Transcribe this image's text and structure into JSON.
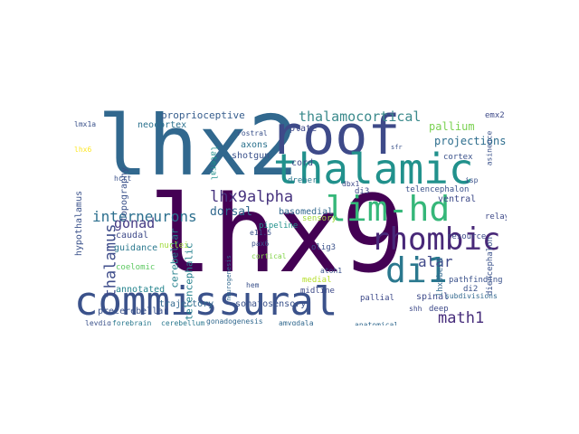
{
  "chart_data": {
    "type": "wordcloud",
    "words": [
      {
        "text": "lhx9",
        "color": "#440154"
      },
      {
        "text": "lhx2",
        "color": "#31688e"
      },
      {
        "text": "commissural",
        "color": "#3b528b"
      },
      {
        "text": "roof",
        "color": "#3e4a89"
      },
      {
        "text": "thalamic",
        "color": "#21918c"
      },
      {
        "text": "lim-hd",
        "color": "#35b779"
      },
      {
        "text": "rhombic",
        "color": "#482878"
      },
      {
        "text": "di1",
        "color": "#2a788e"
      },
      {
        "text": "lhx9alpha",
        "color": "#46327e"
      },
      {
        "text": "thalamocortical",
        "color": "#3b8a8c"
      },
      {
        "text": "interneurons",
        "color": "#2c6f8e"
      },
      {
        "text": "thalamus",
        "color": "#3e4c8a"
      },
      {
        "text": "gonad",
        "color": "#443a83"
      },
      {
        "text": "math1",
        "color": "#472d7b"
      },
      {
        "text": "alar",
        "color": "#3f4889"
      },
      {
        "text": "proprioceptive",
        "color": "#365d8d"
      },
      {
        "text": "pallium",
        "color": "#7ad151"
      },
      {
        "text": "projections",
        "color": "#2e6e8e"
      },
      {
        "text": "dorsal",
        "color": "#31688e"
      },
      {
        "text": "cerebellar",
        "color": "#26828e"
      },
      {
        "text": "telencephalic",
        "color": "#26828e"
      },
      {
        "text": "hypothalamus",
        "color": "#3b528b"
      },
      {
        "text": "topography",
        "color": "#3b528b"
      },
      {
        "text": "neocortex",
        "color": "#2c728e"
      },
      {
        "text": "axons",
        "color": "#2c728e"
      },
      {
        "text": "shotgun",
        "color": "#3b528b"
      },
      {
        "text": "plate",
        "color": "#3e4a89"
      },
      {
        "text": "cord",
        "color": "#3e4a89"
      },
      {
        "text": "lateral",
        "color": "#21918c"
      },
      {
        "text": "caudal",
        "color": "#3e4a89"
      },
      {
        "text": "guidance",
        "color": "#2a788e"
      },
      {
        "text": "annotated",
        "color": "#25848e"
      },
      {
        "text": "coelomic",
        "color": "#5ec962"
      },
      {
        "text": "precerebellar",
        "color": "#3b528b"
      },
      {
        "text": "trajectory",
        "color": "#31688e"
      },
      {
        "text": "somatosensory",
        "color": "#3b528b"
      },
      {
        "text": "basomedial",
        "color": "#31688e"
      },
      {
        "text": "midline",
        "color": "#3e4a89"
      },
      {
        "text": "pallial",
        "color": "#3e4a89"
      },
      {
        "text": "spinal",
        "color": "#3e4a89"
      },
      {
        "text": "deep",
        "color": "#3e4a89"
      },
      {
        "text": "ventral",
        "color": "#3e4a89"
      },
      {
        "text": "resource",
        "color": "#3e4a89"
      },
      {
        "text": "relay",
        "color": "#3e4a89"
      },
      {
        "text": "telencephalon",
        "color": "#3b528b"
      },
      {
        "text": "diencephalon",
        "color": "#3b528b"
      },
      {
        "text": "pathfinding",
        "color": "#3b528b"
      },
      {
        "text": "subdivisions",
        "color": "#31688e"
      },
      {
        "text": "anatomical",
        "color": "#31688e"
      },
      {
        "text": "forebrain",
        "color": "#2a788e"
      },
      {
        "text": "cerebellum",
        "color": "#2a788e"
      },
      {
        "text": "gonadogenesis",
        "color": "#31688e"
      },
      {
        "text": "amygdala",
        "color": "#31688e"
      },
      {
        "text": "unconscious",
        "color": "#3b528b"
      },
      {
        "text": "leydig",
        "color": "#3b528b"
      },
      {
        "text": "emx2",
        "color": "#3e4a89"
      },
      {
        "text": "di3",
        "color": "#3e4a89"
      },
      {
        "text": "dbx1",
        "color": "#3e4a89"
      },
      {
        "text": "sensory",
        "color": "#a0da39"
      },
      {
        "text": "cortex",
        "color": "#3b528b"
      },
      {
        "text": "medial",
        "color": "#b5de2b"
      },
      {
        "text": "olig3",
        "color": "#3b528b"
      },
      {
        "text": "atoh1",
        "color": "#3b528b"
      },
      {
        "text": "pax6",
        "color": "#3b528b"
      },
      {
        "text": "e11.5",
        "color": "#3b528b"
      },
      {
        "text": "hcrt",
        "color": "#3b528b"
      },
      {
        "text": "lmx1a",
        "color": "#3b528b"
      },
      {
        "text": "lhx6",
        "color": "#fde725"
      },
      {
        "text": "nuclei",
        "color": "#9fda3a"
      },
      {
        "text": "dreher",
        "color": "#2a788e"
      },
      {
        "text": "pipeline",
        "color": "#21918c"
      },
      {
        "text": "cortical",
        "color": "#84d44b"
      },
      {
        "text": "di2",
        "color": "#3b528b"
      },
      {
        "text": "shh",
        "color": "#3e4a89"
      },
      {
        "text": "lhx9beta",
        "color": "#31688e"
      },
      {
        "text": "asinence",
        "color": "#3b528b"
      },
      {
        "text": "isp",
        "color": "#3b528b"
      },
      {
        "text": "rostral",
        "color": "#3b528b"
      },
      {
        "text": "neurogenesis",
        "color": "#31688e"
      },
      {
        "text": "hem",
        "color": "#3b528b"
      },
      {
        "text": "sfr",
        "color": "#3b528b"
      }
    ]
  }
}
